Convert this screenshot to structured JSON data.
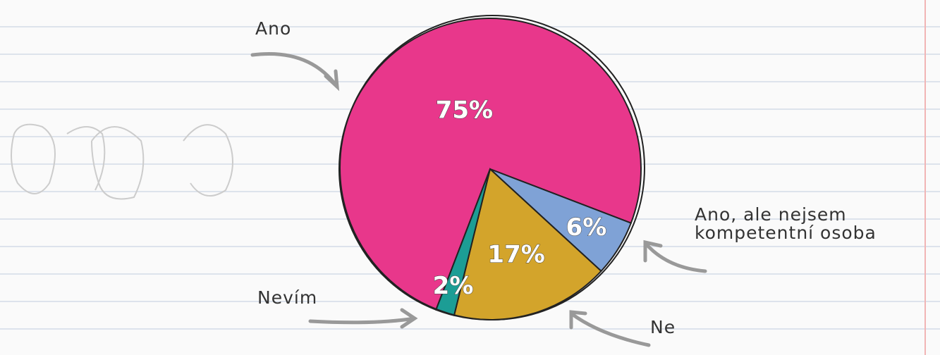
{
  "chart_data": {
    "type": "pie",
    "categories": [
      "Ano",
      "Ano, ale nejsem kompetentní osoba",
      "Ne",
      "Nevím"
    ],
    "values": [
      75,
      6,
      17,
      2
    ],
    "value_labels": [
      "75%",
      "6%",
      "17%",
      "2%"
    ],
    "colors": [
      "#e8378b",
      "#7fa2d6",
      "#d3a42b",
      "#1c9d95"
    ]
  }
}
